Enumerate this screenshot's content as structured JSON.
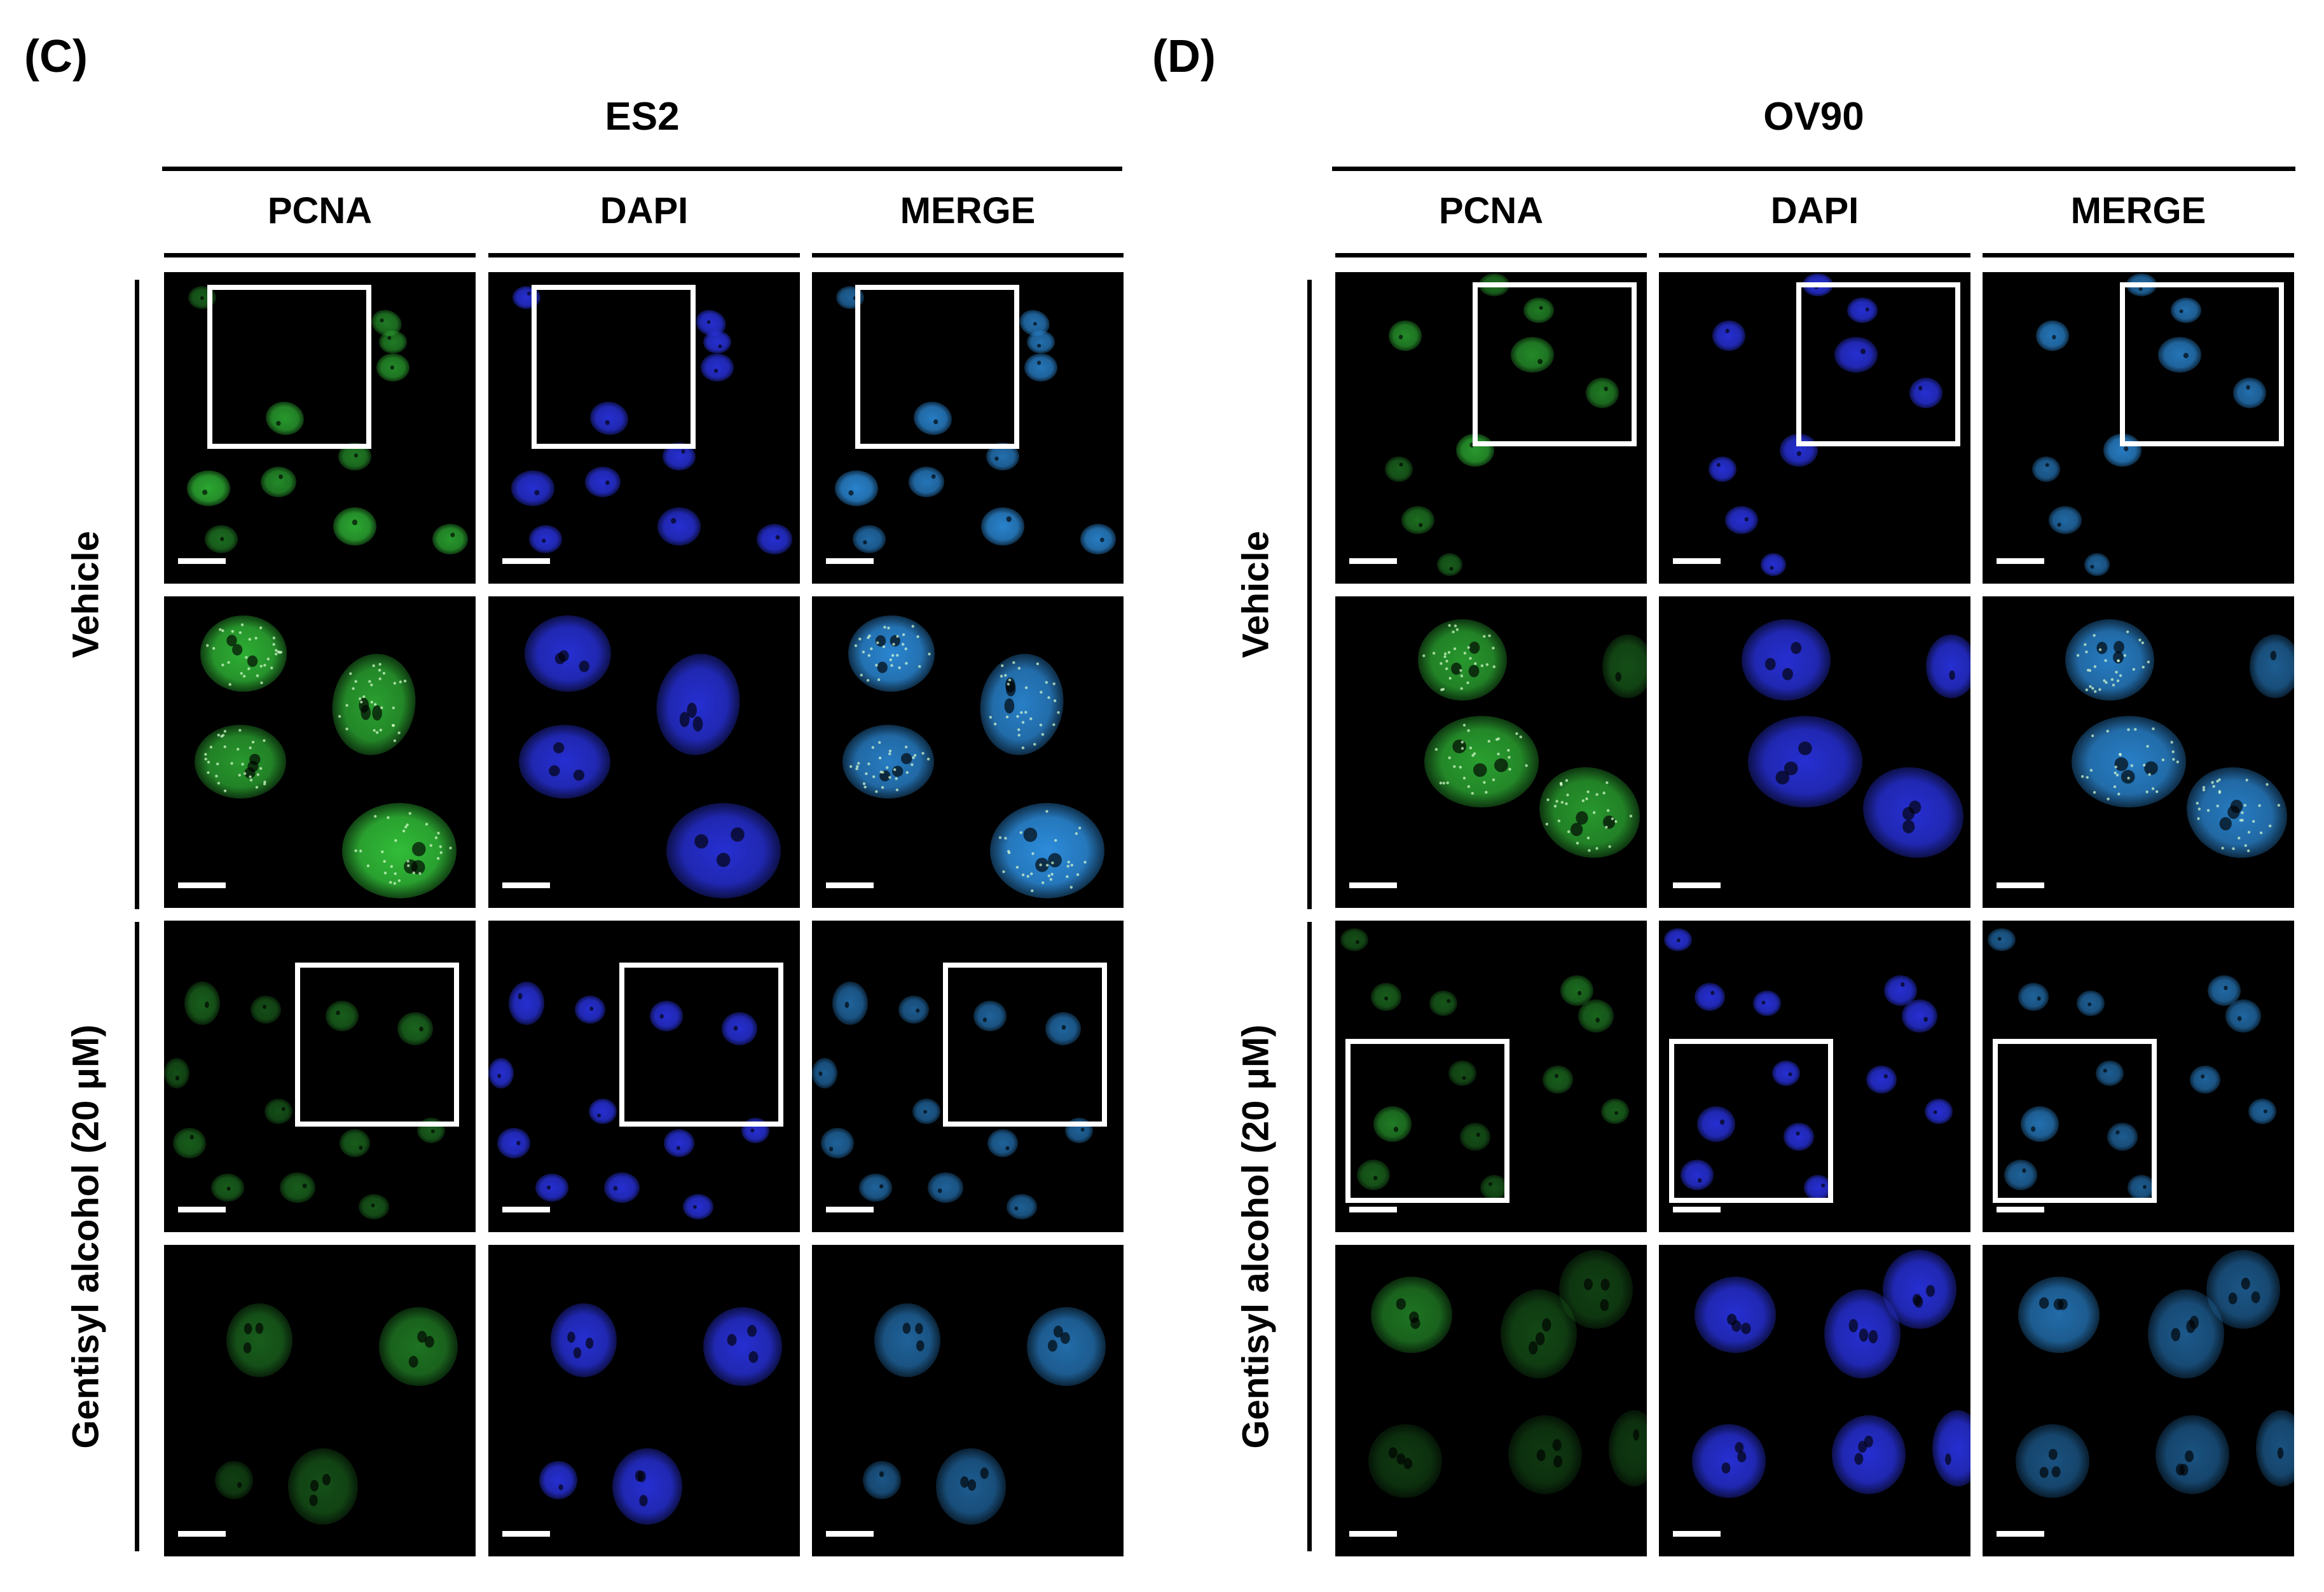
{
  "panels": [
    {
      "letter": "(C)",
      "cell_line": "ES2",
      "columns": [
        "PCNA",
        "DAPI",
        "MERGE"
      ],
      "groups": [
        {
          "label": "Vehicle"
        },
        {
          "label": "Gentisyl alcohol (20 μM)"
        }
      ]
    },
    {
      "letter": "(D)",
      "cell_line": "OV90",
      "columns": [
        "PCNA",
        "DAPI",
        "MERGE"
      ],
      "groups": [
        {
          "label": "Vehicle"
        },
        {
          "label": "Gentisyl alcohol (20 μM)"
        }
      ]
    }
  ],
  "channel_colors": {
    "PCNA": "#33c43a",
    "DAPI": "#2a34e8",
    "MERGE": "#2d8fe0",
    "background": "#000000",
    "inset_box": "#ffffff",
    "scale_bar": "#ffffff"
  }
}
